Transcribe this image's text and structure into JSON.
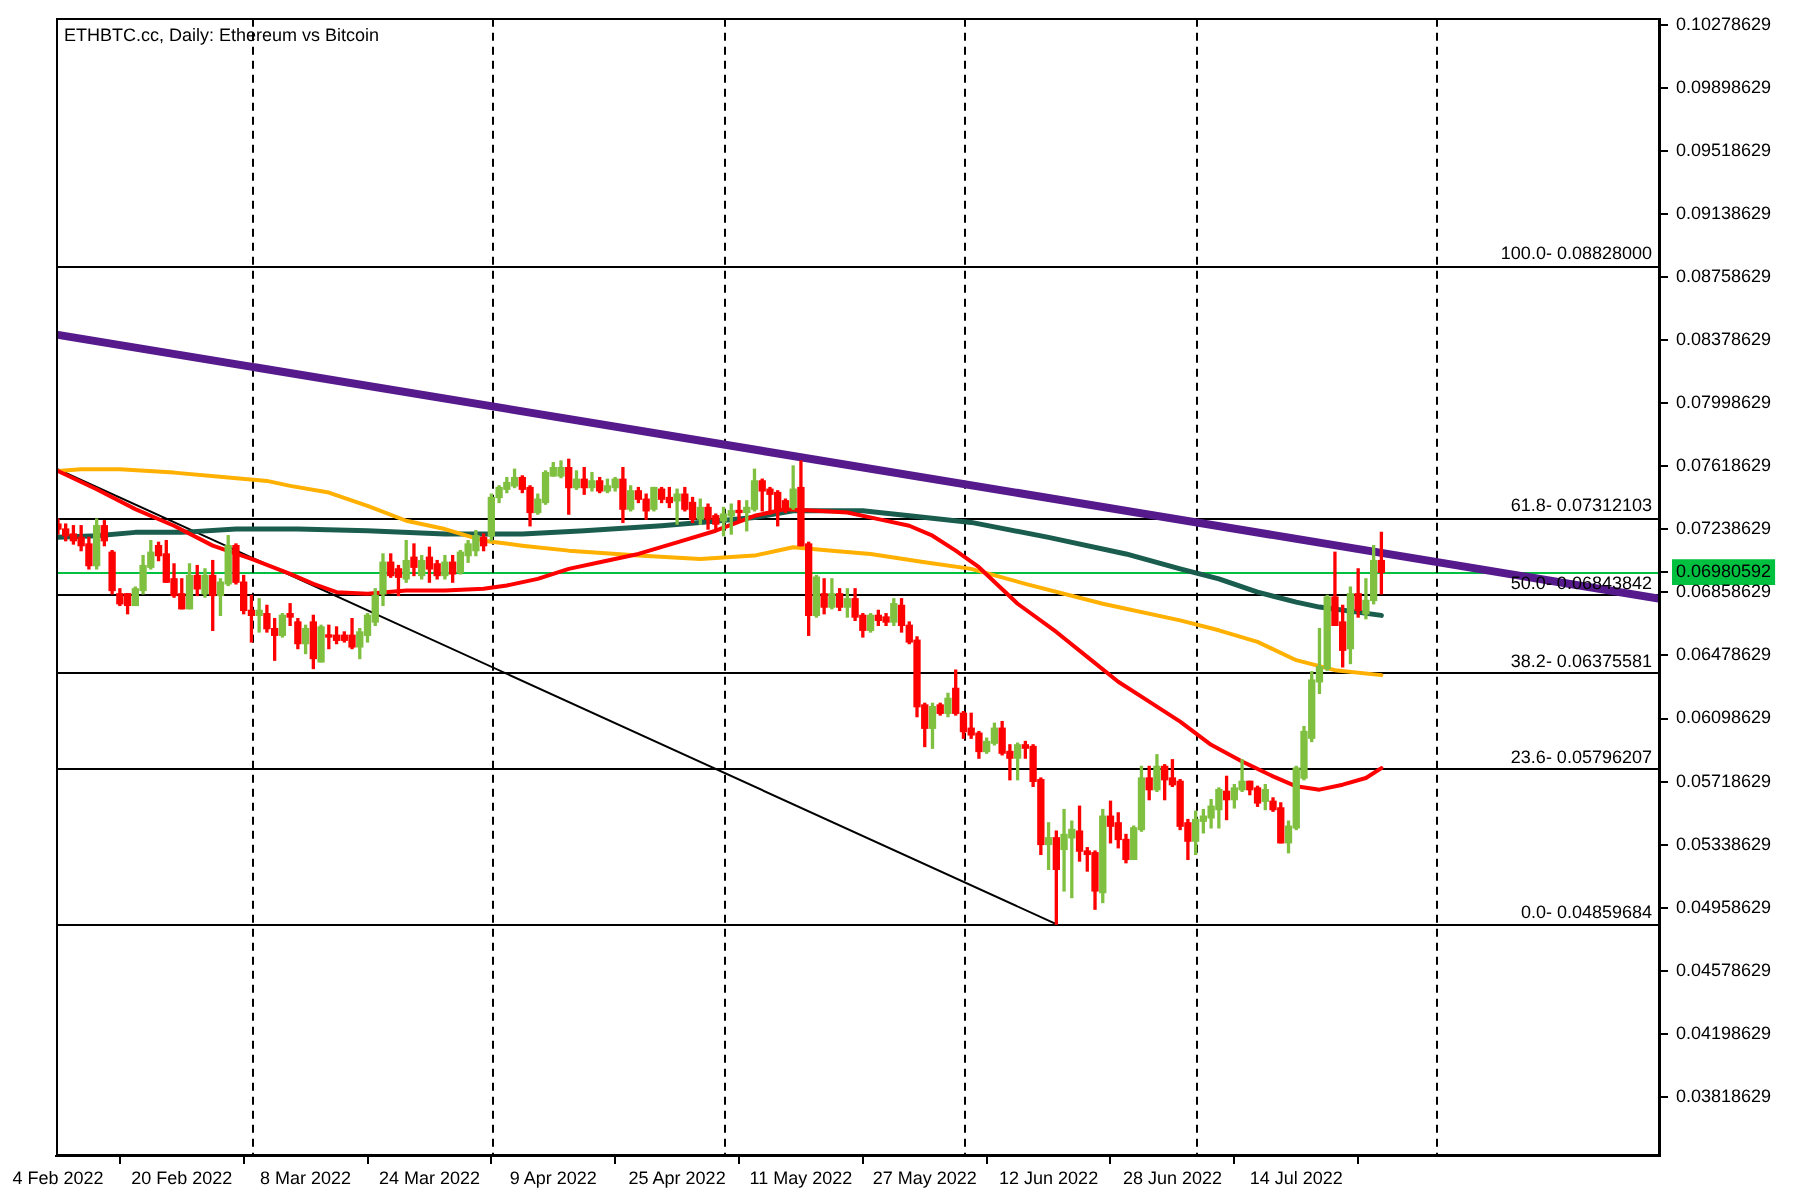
{
  "chart_data": {
    "type": "candlestick",
    "title": "ETHBTC.cc, Daily: Ethereum vs Bitcoin",
    "x": [
      "2022-02-04",
      "2022-02-05",
      "2022-02-06",
      "2022-02-07",
      "2022-02-08",
      "2022-02-09",
      "2022-02-10",
      "2022-02-11",
      "2022-02-12",
      "2022-02-13",
      "2022-02-14",
      "2022-02-15",
      "2022-02-16",
      "2022-02-17",
      "2022-02-18",
      "2022-02-19",
      "2022-02-20",
      "2022-02-21",
      "2022-02-22",
      "2022-02-23",
      "2022-02-24",
      "2022-02-25",
      "2022-02-26",
      "2022-02-27",
      "2022-02-28",
      "2022-03-01",
      "2022-03-02",
      "2022-03-03",
      "2022-03-04",
      "2022-03-05",
      "2022-03-06",
      "2022-03-07",
      "2022-03-08",
      "2022-03-09",
      "2022-03-10",
      "2022-03-11",
      "2022-03-12",
      "2022-03-13",
      "2022-03-14",
      "2022-03-15",
      "2022-03-16",
      "2022-03-17",
      "2022-03-18",
      "2022-03-19",
      "2022-03-20",
      "2022-03-21",
      "2022-03-22",
      "2022-03-23",
      "2022-03-24",
      "2022-03-25",
      "2022-03-26",
      "2022-03-27",
      "2022-03-28",
      "2022-03-29",
      "2022-03-30",
      "2022-03-31",
      "2022-04-01",
      "2022-04-02",
      "2022-04-03",
      "2022-04-04",
      "2022-04-05",
      "2022-04-06",
      "2022-04-07",
      "2022-04-08",
      "2022-04-09",
      "2022-04-10",
      "2022-04-11",
      "2022-04-12",
      "2022-04-13",
      "2022-04-14",
      "2022-04-15",
      "2022-04-16",
      "2022-04-17",
      "2022-04-18",
      "2022-04-19",
      "2022-04-20",
      "2022-04-21",
      "2022-04-22",
      "2022-04-23",
      "2022-04-24",
      "2022-04-25",
      "2022-04-26",
      "2022-04-27",
      "2022-04-28",
      "2022-04-29",
      "2022-04-30",
      "2022-05-01",
      "2022-05-02",
      "2022-05-03",
      "2022-05-04",
      "2022-05-05",
      "2022-05-06",
      "2022-05-07",
      "2022-05-08",
      "2022-05-09",
      "2022-05-10",
      "2022-05-11",
      "2022-05-12",
      "2022-05-13",
      "2022-05-14",
      "2022-05-15",
      "2022-05-16",
      "2022-05-17",
      "2022-05-18",
      "2022-05-19",
      "2022-05-20",
      "2022-05-21",
      "2022-05-22",
      "2022-05-23",
      "2022-05-24",
      "2022-05-25",
      "2022-05-26",
      "2022-05-27",
      "2022-05-28",
      "2022-05-29",
      "2022-05-30",
      "2022-05-31",
      "2022-06-01",
      "2022-06-02",
      "2022-06-03",
      "2022-06-04",
      "2022-06-05",
      "2022-06-06",
      "2022-06-07",
      "2022-06-08",
      "2022-06-09",
      "2022-06-10",
      "2022-06-11",
      "2022-06-12",
      "2022-06-13",
      "2022-06-14",
      "2022-06-15",
      "2022-06-16",
      "2022-06-17",
      "2022-06-18",
      "2022-06-19",
      "2022-06-20",
      "2022-06-21",
      "2022-06-22",
      "2022-06-23",
      "2022-06-24",
      "2022-06-25",
      "2022-06-26",
      "2022-06-27",
      "2022-06-28",
      "2022-06-29",
      "2022-06-30",
      "2022-07-01",
      "2022-07-02",
      "2022-07-03",
      "2022-07-04",
      "2022-07-05",
      "2022-07-06",
      "2022-07-07",
      "2022-07-08",
      "2022-07-09",
      "2022-07-10",
      "2022-07-11",
      "2022-07-12",
      "2022-07-13",
      "2022-07-14",
      "2022-07-15",
      "2022-07-16",
      "2022-07-17",
      "2022-07-18",
      "2022-07-19",
      "2022-07-20",
      "2022-07-21",
      "2022-07-22",
      "2022-07-23",
      "2022-07-24",
      "2022-07-25"
    ],
    "ohlc": [
      [
        0.0727,
        0.073,
        0.0721,
        0.0724
      ],
      [
        0.0724,
        0.0727,
        0.0717,
        0.072
      ],
      [
        0.0721,
        0.0726,
        0.0715,
        0.0717
      ],
      [
        0.0719,
        0.0726,
        0.0711,
        0.0714
      ],
      [
        0.0715,
        0.0719,
        0.07,
        0.0702
      ],
      [
        0.0702,
        0.073,
        0.07,
        0.0726
      ],
      [
        0.0726,
        0.0729,
        0.0714,
        0.0717
      ],
      [
        0.071,
        0.0711,
        0.0685,
        0.0687
      ],
      [
        0.0685,
        0.0688,
        0.0678,
        0.0679
      ],
      [
        0.0685,
        0.0685,
        0.0673,
        0.0678
      ],
      [
        0.0678,
        0.0689,
        0.0678,
        0.0688
      ],
      [
        0.0687,
        0.0708,
        0.0685,
        0.0702
      ],
      [
        0.0701,
        0.0717,
        0.07,
        0.071
      ],
      [
        0.0714,
        0.0716,
        0.0705,
        0.0708
      ],
      [
        0.0709,
        0.0717,
        0.0692,
        0.0692
      ],
      [
        0.0694,
        0.0703,
        0.0683,
        0.0684
      ],
      [
        0.0685,
        0.0694,
        0.0676,
        0.0676
      ],
      [
        0.0676,
        0.0703,
        0.0676,
        0.0696
      ],
      [
        0.0696,
        0.0702,
        0.0684,
        0.0688
      ],
      [
        0.0685,
        0.07,
        0.0683,
        0.0696
      ],
      [
        0.0696,
        0.0705,
        0.0663,
        0.0684
      ],
      [
        0.0684,
        0.0694,
        0.0672,
        0.0692
      ],
      [
        0.0691,
        0.072,
        0.069,
        0.0714
      ],
      [
        0.0714,
        0.0715,
        0.0691,
        0.0692
      ],
      [
        0.0692,
        0.0696,
        0.0673,
        0.0675
      ],
      [
        0.0675,
        0.0684,
        0.0656,
        0.0672
      ],
      [
        0.0672,
        0.0682,
        0.0662,
        0.0675
      ],
      [
        0.0673,
        0.0678,
        0.0662,
        0.0664
      ],
      [
        0.0664,
        0.067,
        0.0645,
        0.066
      ],
      [
        0.066,
        0.0673,
        0.0659,
        0.0672
      ],
      [
        0.0673,
        0.0679,
        0.0666,
        0.0671
      ],
      [
        0.0668,
        0.067,
        0.0652,
        0.0655
      ],
      [
        0.0655,
        0.0666,
        0.0649,
        0.0664
      ],
      [
        0.0668,
        0.0672,
        0.064,
        0.0646
      ],
      [
        0.0644,
        0.0666,
        0.0644,
        0.0665
      ],
      [
        0.066,
        0.0666,
        0.0652,
        0.0659
      ],
      [
        0.066,
        0.0665,
        0.0655,
        0.0657
      ],
      [
        0.066,
        0.0662,
        0.0656,
        0.0657
      ],
      [
        0.066,
        0.067,
        0.0652,
        0.0653
      ],
      [
        0.0653,
        0.0664,
        0.0646,
        0.0662
      ],
      [
        0.066,
        0.0673,
        0.0656,
        0.0672
      ],
      [
        0.0668,
        0.0688,
        0.0666,
        0.0684
      ],
      [
        0.0685,
        0.0709,
        0.0678,
        0.0704
      ],
      [
        0.0704,
        0.0709,
        0.0695,
        0.0696
      ],
      [
        0.07,
        0.0702,
        0.0684,
        0.0695
      ],
      [
        0.0694,
        0.0717,
        0.0692,
        0.0705
      ],
      [
        0.0707,
        0.0715,
        0.0696,
        0.0701
      ],
      [
        0.0696,
        0.0708,
        0.0694,
        0.0705
      ],
      [
        0.0707,
        0.0713,
        0.0692,
        0.07
      ],
      [
        0.0703,
        0.0705,
        0.0694,
        0.0696
      ],
      [
        0.0696,
        0.0708,
        0.0694,
        0.0704
      ],
      [
        0.0704,
        0.0708,
        0.0692,
        0.0697
      ],
      [
        0.0698,
        0.0711,
        0.0697,
        0.071
      ],
      [
        0.0708,
        0.0717,
        0.0704,
        0.0715
      ],
      [
        0.0711,
        0.0723,
        0.0708,
        0.072
      ],
      [
        0.0719,
        0.0721,
        0.0711,
        0.0714
      ],
      [
        0.072,
        0.0745,
        0.0717,
        0.0743
      ],
      [
        0.0743,
        0.075,
        0.074,
        0.0749
      ],
      [
        0.0748,
        0.0755,
        0.0746,
        0.0752
      ],
      [
        0.075,
        0.076,
        0.0749,
        0.0755
      ],
      [
        0.0755,
        0.0756,
        0.0746,
        0.0748
      ],
      [
        0.0749,
        0.075,
        0.0726,
        0.0734
      ],
      [
        0.0734,
        0.0745,
        0.0733,
        0.0742
      ],
      [
        0.074,
        0.0759,
        0.0739,
        0.0758
      ],
      [
        0.0756,
        0.0764,
        0.0756,
        0.0761
      ],
      [
        0.0756,
        0.0765,
        0.0755,
        0.0761
      ],
      [
        0.0761,
        0.0766,
        0.0733,
        0.0749
      ],
      [
        0.0749,
        0.0759,
        0.0748,
        0.0754
      ],
      [
        0.0754,
        0.0761,
        0.0745,
        0.0749
      ],
      [
        0.0749,
        0.0758,
        0.0747,
        0.0753
      ],
      [
        0.0753,
        0.0755,
        0.0746,
        0.0747
      ],
      [
        0.0747,
        0.0754,
        0.0746,
        0.075
      ],
      [
        0.0749,
        0.0755,
        0.0747,
        0.0754
      ],
      [
        0.0754,
        0.0761,
        0.0728,
        0.0736
      ],
      [
        0.0736,
        0.075,
        0.0735,
        0.0747
      ],
      [
        0.0747,
        0.0749,
        0.074,
        0.0742
      ],
      [
        0.0742,
        0.0745,
        0.073,
        0.0735
      ],
      [
        0.0736,
        0.0749,
        0.0735,
        0.0749
      ],
      [
        0.0748,
        0.0749,
        0.074,
        0.0742
      ],
      [
        0.0743,
        0.0749,
        0.0737,
        0.074
      ],
      [
        0.0741,
        0.0748,
        0.0727,
        0.0745
      ],
      [
        0.0745,
        0.0749,
        0.0735,
        0.0736
      ],
      [
        0.074,
        0.0743,
        0.0728,
        0.073
      ],
      [
        0.073,
        0.0742,
        0.0727,
        0.0737
      ],
      [
        0.0737,
        0.0739,
        0.0724,
        0.073
      ],
      [
        0.0732,
        0.0733,
        0.0724,
        0.0727
      ],
      [
        0.0729,
        0.0737,
        0.072,
        0.0733
      ],
      [
        0.0732,
        0.0739,
        0.0721,
        0.0735
      ],
      [
        0.0735,
        0.0741,
        0.0729,
        0.0734
      ],
      [
        0.0734,
        0.0741,
        0.0723,
        0.0737
      ],
      [
        0.0736,
        0.076,
        0.0735,
        0.0753
      ],
      [
        0.0753,
        0.0754,
        0.0735,
        0.0747
      ],
      [
        0.0748,
        0.0749,
        0.0733,
        0.0745
      ],
      [
        0.0746,
        0.0747,
        0.0726,
        0.0735
      ],
      [
        0.0741,
        0.0742,
        0.0734,
        0.0736
      ],
      [
        0.0737,
        0.0762,
        0.0736,
        0.0748
      ],
      [
        0.0749,
        0.0765,
        0.0714,
        0.0714
      ],
      [
        0.0715,
        0.0716,
        0.066,
        0.0672
      ],
      [
        0.0672,
        0.0696,
        0.0671,
        0.0695
      ],
      [
        0.0685,
        0.0694,
        0.0673,
        0.0677
      ],
      [
        0.0677,
        0.0694,
        0.0676,
        0.0685
      ],
      [
        0.0685,
        0.0688,
        0.0675,
        0.0677
      ],
      [
        0.0677,
        0.0688,
        0.0671,
        0.0682
      ],
      [
        0.0682,
        0.0688,
        0.0669,
        0.0671
      ],
      [
        0.0672,
        0.0673,
        0.0659,
        0.0663
      ],
      [
        0.0663,
        0.0673,
        0.0662,
        0.0672
      ],
      [
        0.0672,
        0.0675,
        0.0666,
        0.0669
      ],
      [
        0.0671,
        0.0673,
        0.0666,
        0.0668
      ],
      [
        0.0668,
        0.0682,
        0.0666,
        0.0679
      ],
      [
        0.0678,
        0.0682,
        0.0662,
        0.0666
      ],
      [
        0.0666,
        0.0668,
        0.0655,
        0.0656
      ],
      [
        0.0657,
        0.0659,
        0.0611,
        0.0617
      ],
      [
        0.0618,
        0.0619,
        0.0593,
        0.0604
      ],
      [
        0.0604,
        0.0619,
        0.0592,
        0.0617
      ],
      [
        0.0618,
        0.0619,
        0.0612,
        0.0613
      ],
      [
        0.0613,
        0.0625,
        0.0611,
        0.0622
      ],
      [
        0.0628,
        0.0639,
        0.0612,
        0.0613
      ],
      [
        0.0613,
        0.0614,
        0.0598,
        0.0602
      ],
      [
        0.0604,
        0.0613,
        0.0598,
        0.06
      ],
      [
        0.0601,
        0.0602,
        0.0586,
        0.059
      ],
      [
        0.059,
        0.0598,
        0.0589,
        0.0596
      ],
      [
        0.0595,
        0.0607,
        0.0594,
        0.0604
      ],
      [
        0.0604,
        0.0608,
        0.0588,
        0.0589
      ],
      [
        0.059,
        0.0594,
        0.0573,
        0.0586
      ],
      [
        0.0586,
        0.0595,
        0.0573,
        0.0594
      ],
      [
        0.0594,
        0.0596,
        0.0586,
        0.0592
      ],
      [
        0.0593,
        0.0594,
        0.0569,
        0.0572
      ],
      [
        0.0573,
        0.0574,
        0.0528,
        0.0534
      ],
      [
        0.0534,
        0.0547,
        0.0519,
        0.0538
      ],
      [
        0.0538,
        0.0542,
        0.0486,
        0.0519
      ],
      [
        0.0531,
        0.0555,
        0.0506,
        0.054
      ],
      [
        0.0538,
        0.0548,
        0.0502,
        0.0543
      ],
      [
        0.0542,
        0.0557,
        0.0524,
        0.053
      ],
      [
        0.053,
        0.0532,
        0.0518,
        0.0528
      ],
      [
        0.0529,
        0.053,
        0.0495,
        0.0506
      ],
      [
        0.0505,
        0.0555,
        0.0499,
        0.0551
      ],
      [
        0.0551,
        0.056,
        0.0535,
        0.0545
      ],
      [
        0.0547,
        0.0553,
        0.0532,
        0.0537
      ],
      [
        0.0537,
        0.054,
        0.0523,
        0.0525
      ],
      [
        0.0525,
        0.0545,
        0.0525,
        0.0544
      ],
      [
        0.0543,
        0.0581,
        0.0542,
        0.0574
      ],
      [
        0.0574,
        0.0581,
        0.0561,
        0.0567
      ],
      [
        0.0567,
        0.0588,
        0.0566,
        0.0581
      ],
      [
        0.0581,
        0.0582,
        0.0561,
        0.0573
      ],
      [
        0.0574,
        0.0585,
        0.0569,
        0.057
      ],
      [
        0.0572,
        0.0573,
        0.0543,
        0.0545
      ],
      [
        0.0547,
        0.0549,
        0.0525,
        0.0536
      ],
      [
        0.0536,
        0.0554,
        0.0528,
        0.0549
      ],
      [
        0.0548,
        0.0555,
        0.0541,
        0.0551
      ],
      [
        0.055,
        0.0561,
        0.0544,
        0.0557
      ],
      [
        0.0555,
        0.0568,
        0.0544,
        0.0567
      ],
      [
        0.0566,
        0.0575,
        0.0549,
        0.0561
      ],
      [
        0.0561,
        0.057,
        0.0556,
        0.0568
      ],
      [
        0.0567,
        0.0585,
        0.0566,
        0.0572
      ],
      [
        0.0572,
        0.0572,
        0.0564,
        0.0567
      ],
      [
        0.0568,
        0.0569,
        0.0557,
        0.0559
      ],
      [
        0.056,
        0.057,
        0.0555,
        0.0567
      ],
      [
        0.056,
        0.0562,
        0.0554,
        0.0555
      ],
      [
        0.0556,
        0.0559,
        0.0535,
        0.0535
      ],
      [
        0.0535,
        0.0548,
        0.0529,
        0.0545
      ],
      [
        0.0544,
        0.0581,
        0.0543,
        0.058
      ],
      [
        0.0574,
        0.0605,
        0.0573,
        0.0602
      ],
      [
        0.0598,
        0.0638,
        0.0596,
        0.0633
      ],
      [
        0.0632,
        0.0664,
        0.0625,
        0.0641
      ],
      [
        0.064,
        0.0684,
        0.0639,
        0.0683
      ],
      [
        0.0683,
        0.071,
        0.0666,
        0.0666
      ],
      [
        0.0668,
        0.0678,
        0.0641,
        0.0651
      ],
      [
        0.0652,
        0.0689,
        0.0643,
        0.0685
      ],
      [
        0.0685,
        0.07,
        0.0671,
        0.0675
      ],
      [
        0.0673,
        0.0694,
        0.067,
        0.0681
      ],
      [
        0.0681,
        0.0714,
        0.0679,
        0.0705
      ],
      [
        0.0705,
        0.0722,
        0.0685,
        0.0698
      ]
    ],
    "colors": [
      "#ff0000",
      "#ff0000",
      "#ff0000",
      "#ff0000",
      "#ff0000",
      "#80c040",
      "#ff0000",
      "#ff0000",
      "#ff0000",
      "#ff0000",
      "#80c040",
      "#80c040",
      "#80c040",
      "#ff0000",
      "#ff0000",
      "#ff0000",
      "#ff0000",
      "#80c040",
      "#ff0000",
      "#80c040",
      "#ff0000",
      "#80c040",
      "#80c040",
      "#ff0000",
      "#ff0000",
      "#ff0000",
      "#80c040",
      "#ff0000",
      "#ff0000",
      "#80c040",
      "#ff0000",
      "#ff0000",
      "#80c040",
      "#ff0000",
      "#80c040",
      "#ff0000",
      "#ff0000",
      "#ff0000",
      "#ff0000",
      "#80c040",
      "#80c040",
      "#80c040",
      "#80c040",
      "#ff0000",
      "#ff0000",
      "#80c040",
      "#ff0000",
      "#80c040",
      "#ff0000",
      "#ff0000",
      "#80c040",
      "#ff0000",
      "#80c040",
      "#80c040",
      "#80c040",
      "#ff0000",
      "#80c040",
      "#80c040",
      "#80c040",
      "#80c040",
      "#ff0000",
      "#ff0000",
      "#80c040",
      "#80c040",
      "#80c040",
      "#80c040",
      "#ff0000",
      "#80c040",
      "#ff0000",
      "#80c040",
      "#ff0000",
      "#80c040",
      "#80c040",
      "#ff0000",
      "#80c040",
      "#ff0000",
      "#ff0000",
      "#80c040",
      "#ff0000",
      "#ff0000",
      "#80c040",
      "#ff0000",
      "#ff0000",
      "#80c040",
      "#ff0000",
      "#ff0000",
      "#80c040",
      "#80c040",
      "#ff0000",
      "#80c040",
      "#80c040",
      "#ff0000",
      "#ff0000",
      "#ff0000",
      "#ff0000",
      "#80c040",
      "#ff0000",
      "#ff0000",
      "#80c040",
      "#ff0000",
      "#80c040",
      "#ff0000",
      "#80c040",
      "#ff0000",
      "#ff0000",
      "#80c040",
      "#ff0000",
      "#ff0000",
      "#80c040",
      "#ff0000",
      "#ff0000",
      "#ff0000",
      "#ff0000",
      "#80c040",
      "#ff0000",
      "#80c040",
      "#ff0000",
      "#ff0000",
      "#ff0000",
      "#ff0000",
      "#80c040",
      "#80c040",
      "#ff0000",
      "#ff0000",
      "#80c040",
      "#ff0000",
      "#ff0000",
      "#ff0000",
      "#80c040",
      "#ff0000",
      "#80c040",
      "#80c040",
      "#ff0000",
      "#ff0000",
      "#ff0000",
      "#80c040",
      "#ff0000",
      "#ff0000",
      "#ff0000",
      "#80c040",
      "#80c040",
      "#ff0000",
      "#80c040",
      "#ff0000",
      "#ff0000",
      "#ff0000",
      "#ff0000",
      "#80c040",
      "#80c040",
      "#80c040",
      "#80c040",
      "#ff0000",
      "#80c040",
      "#80c040",
      "#ff0000",
      "#ff0000",
      "#80c040",
      "#ff0000",
      "#ff0000",
      "#80c040",
      "#80c040",
      "#80c040",
      "#80c040",
      "#80c040",
      "#80c040",
      "#ff0000",
      "#ff0000",
      "#80c040",
      "#ff0000",
      "#80c040",
      "#80c040",
      "#ff0000"
    ],
    "series": [
      {
        "type": "line",
        "color": "#ff0000",
        "x": [
          "2022-02-04",
          "2022-02-09",
          "2022-02-14",
          "2022-02-19",
          "2022-02-24",
          "2022-03-01",
          "2022-03-06",
          "2022-03-09",
          "2022-03-12",
          "2022-03-16",
          "2022-03-21",
          "2022-03-26",
          "2022-03-31",
          "2022-04-03",
          "2022-04-07",
          "2022-04-11",
          "2022-04-15",
          "2022-04-20",
          "2022-04-25",
          "2022-04-30",
          "2022-05-05",
          "2022-05-09",
          "2022-05-13",
          "2022-05-17",
          "2022-05-21",
          "2022-05-25",
          "2022-05-28",
          "2022-05-31",
          "2022-06-03",
          "2022-06-08",
          "2022-06-13",
          "2022-06-17",
          "2022-06-21",
          "2022-06-25",
          "2022-06-29",
          "2022-07-03",
          "2022-07-07",
          "2022-07-11",
          "2022-07-14",
          "2022-07-17",
          "2022-07-20",
          "2022-07-23",
          "2022-07-25"
        ],
        "values": [
          0.0759,
          0.0748,
          0.0736,
          0.0726,
          0.0714,
          0.0706,
          0.0697,
          0.0691,
          0.0686,
          0.0685,
          0.0687,
          0.0687,
          0.0688,
          0.069,
          0.0694,
          0.07,
          0.0704,
          0.0709,
          0.0716,
          0.0723,
          0.0732,
          0.0736,
          0.0735,
          0.0734,
          0.073,
          0.0726,
          0.072,
          0.0711,
          0.0701,
          0.0679,
          0.0662,
          0.0647,
          0.0632,
          0.062,
          0.0608,
          0.0594,
          0.0584,
          0.0575,
          0.0569,
          0.0567,
          0.057,
          0.0574,
          0.058
        ]
      },
      {
        "type": "line",
        "color": "#ffb000",
        "x": [
          "2022-02-04",
          "2022-02-07",
          "2022-02-12",
          "2022-02-19",
          "2022-02-26",
          "2022-03-03",
          "2022-03-06",
          "2022-03-11",
          "2022-03-16",
          "2022-03-21",
          "2022-03-26",
          "2022-03-31",
          "2022-04-05",
          "2022-04-11",
          "2022-04-20",
          "2022-04-28",
          "2022-05-05",
          "2022-05-10",
          "2022-05-15",
          "2022-05-20",
          "2022-05-27",
          "2022-06-02",
          "2022-06-09",
          "2022-06-19",
          "2022-06-29",
          "2022-07-04",
          "2022-07-09",
          "2022-07-14",
          "2022-07-19",
          "2022-07-25"
        ],
        "values": [
          0.0759,
          0.076,
          0.076,
          0.0758,
          0.0755,
          0.0753,
          0.075,
          0.0746,
          0.0738,
          0.0729,
          0.0724,
          0.0717,
          0.0714,
          0.0711,
          0.0708,
          0.0706,
          0.0708,
          0.0713,
          0.0711,
          0.0709,
          0.0704,
          0.07,
          0.0691,
          0.0679,
          0.0669,
          0.0663,
          0.0656,
          0.0645,
          0.0639,
          0.0636
        ]
      },
      {
        "type": "line",
        "color": "#1a5c4e",
        "x": [
          "2022-02-04",
          "2022-02-09",
          "2022-02-14",
          "2022-02-20",
          "2022-02-27",
          "2022-03-07",
          "2022-03-16",
          "2022-03-26",
          "2022-04-05",
          "2022-04-13",
          "2022-04-23",
          "2022-04-28",
          "2022-05-05",
          "2022-05-10",
          "2022-05-19",
          "2022-05-25",
          "2022-06-02",
          "2022-06-12",
          "2022-06-22",
          "2022-06-29",
          "2022-07-04",
          "2022-07-09",
          "2022-07-14",
          "2022-07-17",
          "2022-07-25"
        ],
        "values": [
          0.0719,
          0.072,
          0.0722,
          0.0722,
          0.0724,
          0.0724,
          0.0723,
          0.0721,
          0.0721,
          0.0723,
          0.0726,
          0.0728,
          0.0731,
          0.0735,
          0.0735,
          0.0732,
          0.0728,
          0.0719,
          0.0709,
          0.07,
          0.0694,
          0.0686,
          0.068,
          0.0677,
          0.0672
        ]
      },
      {
        "type": "line",
        "color": "#561a8c",
        "x": [
          "2022-02-04",
          "2022-08-30"
        ],
        "values": [
          0.0841,
          0.0682
        ]
      },
      {
        "type": "line",
        "color": "#000000",
        "x": [
          "2022-02-04",
          "2022-06-13"
        ],
        "values": [
          0.076,
          0.0486
        ]
      }
    ],
    "xlim": [
      "2022-02-03T18:00",
      "2022-08-30"
    ],
    "xticks": [
      {
        "value": "2022-02-04",
        "label": "4 Feb 2022"
      },
      {
        "value": "2022-02-20",
        "label": "20 Feb 2022"
      },
      {
        "value": "2022-03-08",
        "label": "8 Mar 2022"
      },
      {
        "value": "2022-03-24",
        "label": "24 Mar 2022"
      },
      {
        "value": "2022-04-09",
        "label": "9 Apr 2022"
      },
      {
        "value": "2022-04-25",
        "label": "25 Apr 2022"
      },
      {
        "value": "2022-05-11",
        "label": "11 May 2022"
      },
      {
        "value": "2022-05-27",
        "label": "27 May 2022"
      },
      {
        "value": "2022-06-12",
        "label": "12 Jun 2022"
      },
      {
        "value": "2022-06-28",
        "label": "28 Jun 2022"
      },
      {
        "value": "2022-07-14",
        "label": "14 Jul 2022"
      }
    ],
    "ylim": [
      0.03463,
      0.10314
    ],
    "yticks": [
      0.10278629,
      0.09898629,
      0.09518629,
      0.09138629,
      0.08758629,
      0.08378629,
      0.07998629,
      0.07618629,
      0.07238629,
      0.06980592,
      0.06858629,
      0.06478629,
      0.06098629,
      0.05718629,
      0.05338629,
      0.04958629,
      0.04578629,
      0.04198629,
      0.03818629
    ],
    "ref_lines": [
      {
        "axis": "y",
        "value": 0.08828,
        "color": "#000000"
      },
      {
        "axis": "y",
        "value": 0.07312103,
        "color": "#000000"
      },
      {
        "axis": "y",
        "value": 0.06843842,
        "color": "#000000"
      },
      {
        "axis": "y",
        "value": 0.06375581,
        "color": "#000000"
      },
      {
        "axis": "y",
        "value": 0.05796207,
        "color": "#000000"
      },
      {
        "axis": "y",
        "value": 0.04859684,
        "color": "#000000"
      },
      {
        "axis": "y",
        "value": 0.06980592,
        "color": "#00c040"
      },
      {
        "axis": "x",
        "value": "2022-03-01",
        "color": "#000000",
        "line_style": "dashed"
      },
      {
        "axis": "x",
        "value": "2022-04-01",
        "color": "#000000",
        "line_style": "dashed"
      },
      {
        "axis": "x",
        "value": "2022-05-01",
        "color": "#000000",
        "line_style": "dashed"
      },
      {
        "axis": "x",
        "value": "2022-06-01",
        "color": "#000000",
        "line_style": "dashed"
      },
      {
        "axis": "x",
        "value": "2022-07-01",
        "color": "#000000",
        "line_style": "dashed"
      },
      {
        "axis": "x",
        "value": "2022-08-01",
        "color": "#000000",
        "line_style": "dashed"
      }
    ],
    "annotations": [
      {
        "text": "100.0- 0.08828000",
        "x": "2022-08-30",
        "y": 0.08828
      },
      {
        "text": "61.8- 0.07312103",
        "x": "2022-08-30",
        "y": 0.07312103
      },
      {
        "text": "50.0- 0.06843842",
        "x": "2022-08-30",
        "y": 0.06843842
      },
      {
        "text": "38.2- 0.06375581",
        "x": "2022-08-30",
        "y": 0.06375581
      },
      {
        "text": "23.6- 0.05796207",
        "x": "2022-08-30",
        "y": 0.05796207
      },
      {
        "text": "0.0- 0.04859684",
        "x": "2022-08-30",
        "y": 0.04859684
      }
    ]
  }
}
